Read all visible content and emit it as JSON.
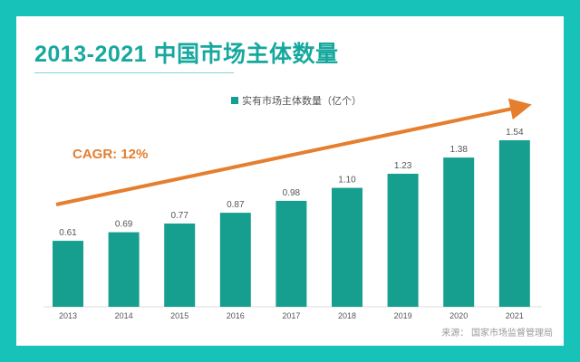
{
  "header": {
    "title": "2013-2021 中国市场主体数量"
  },
  "footer": {
    "source": "来源：  国家市场监督管理局"
  },
  "colors": {
    "background": "#17c3b8",
    "bar": "#169e8e",
    "title": "#16a89e",
    "trend": "#e57e2e"
  },
  "chart_data": {
    "type": "bar",
    "title": "2013-2021 中国市场主体数量",
    "legend": "实有市场主体数量（亿个）",
    "legend_position": "top-center",
    "categories": [
      "2013",
      "2014",
      "2015",
      "2016",
      "2017",
      "2018",
      "2019",
      "2020",
      "2021"
    ],
    "series": [
      {
        "name": "实有市场主体数量（亿个）",
        "values": [
          0.61,
          0.69,
          0.77,
          0.87,
          0.98,
          1.1,
          1.23,
          1.38,
          1.54
        ]
      }
    ],
    "value_labels": [
      "0.61",
      "0.69",
      "0.77",
      "0.87",
      "0.98",
      "1.10",
      "1.23",
      "1.38",
      "1.54"
    ],
    "ylim": [
      0,
      1.8
    ],
    "grid": false,
    "xlabel": "",
    "ylabel": "",
    "annotation": {
      "text": "CAGR: 12%",
      "type": "trend-arrow"
    }
  }
}
